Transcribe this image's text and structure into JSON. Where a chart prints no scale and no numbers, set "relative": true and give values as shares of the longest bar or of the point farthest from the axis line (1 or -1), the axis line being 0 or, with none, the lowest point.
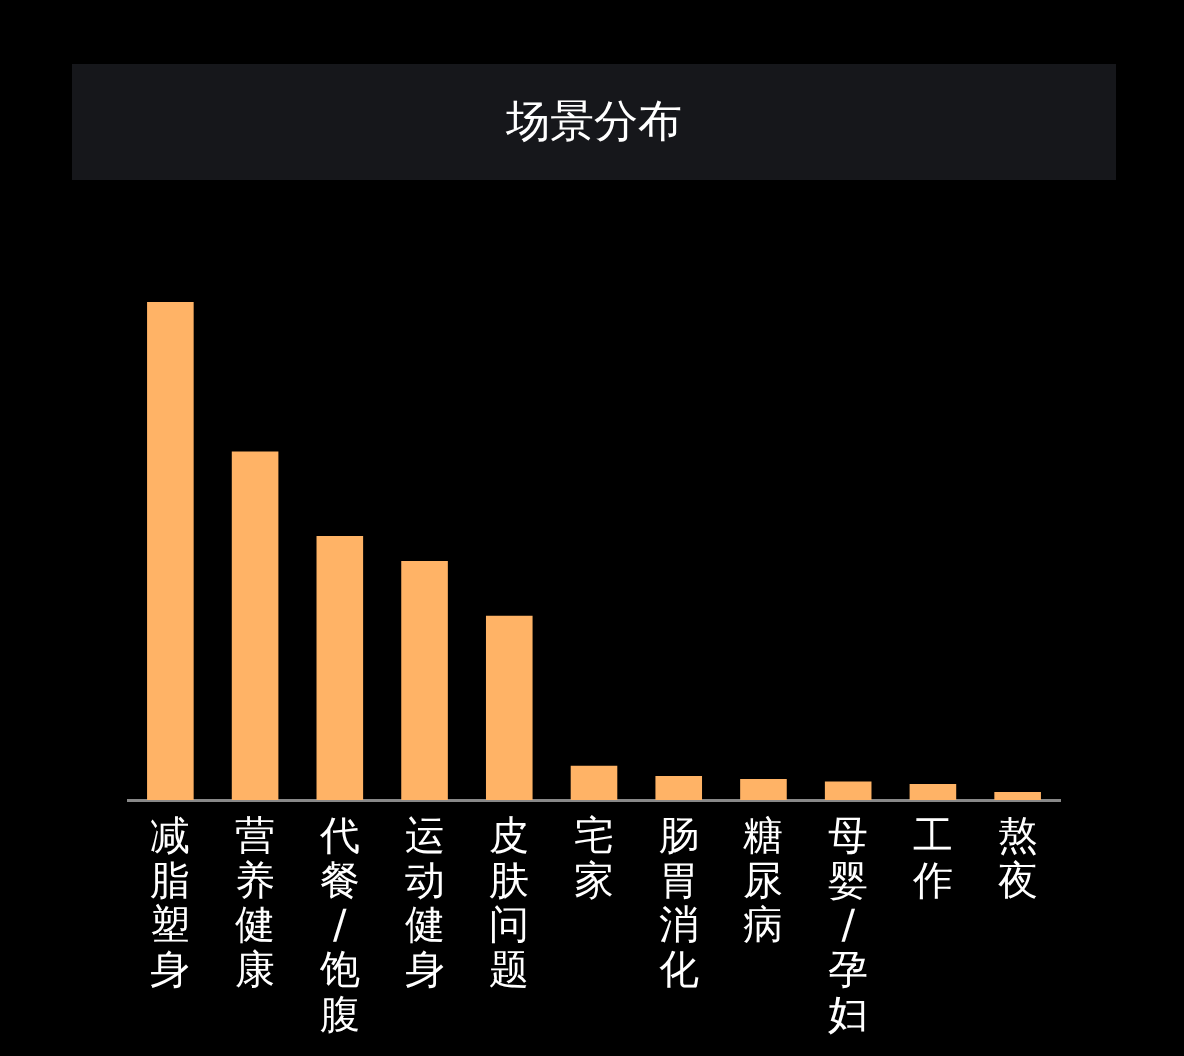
{
  "chart_data": {
    "type": "bar",
    "title": "场景分布",
    "categories": [
      "减脂塑身",
      "营养健康",
      "代餐/饱腹",
      "运动健身",
      "皮肤问题",
      "宅家",
      "肠胃消化",
      "糖尿病",
      "母婴/孕妇",
      "工作",
      "熬夜"
    ],
    "values": [
      1,
      0.7,
      0.53,
      0.48,
      0.37,
      0.069,
      0.048,
      0.042,
      0.037,
      0.032,
      0.016
    ],
    "color": "#ffb366",
    "relative": true,
    "legend": false
  }
}
